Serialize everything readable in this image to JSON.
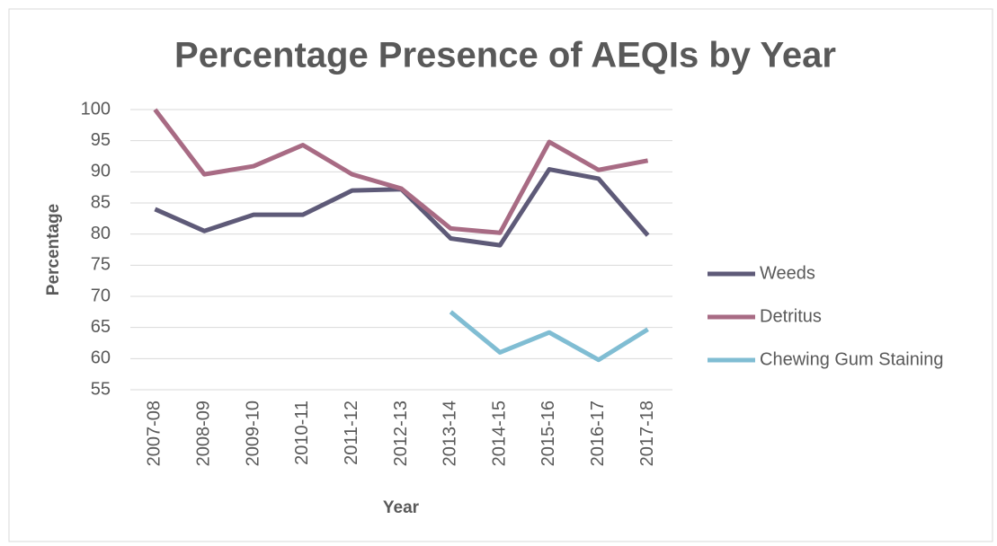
{
  "chart_data": {
    "type": "line",
    "title": "Percentage Presence of AEQIs by Year",
    "xlabel": "Year",
    "ylabel": "Percentage",
    "categories": [
      "2007-08",
      "2008-09",
      "2009-10",
      "2010-11",
      "2011-12",
      "2012-13",
      "2013-14",
      "2014-15",
      "2015-16",
      "2016-17",
      "2017-18"
    ],
    "series": [
      {
        "name": "Weeds",
        "color": "#5e5a78",
        "values": [
          84,
          80.5,
          83.1,
          83.1,
          87,
          87.2,
          79.3,
          78.2,
          90.4,
          88.9,
          79.8
        ]
      },
      {
        "name": "Detritus",
        "color": "#a86b84",
        "values": [
          100,
          89.6,
          90.9,
          94.3,
          89.6,
          87.3,
          80.9,
          80.2,
          94.8,
          90.3,
          91.8
        ]
      },
      {
        "name": "Chewing Gum Staining",
        "color": "#80bdd3",
        "values": [
          null,
          null,
          null,
          null,
          null,
          null,
          67.5,
          61,
          64.2,
          59.8,
          64.7
        ]
      }
    ],
    "ylim": [
      55,
      100
    ],
    "yticks": [
      55,
      60,
      65,
      70,
      75,
      80,
      85,
      90,
      95,
      100
    ],
    "grid": true,
    "legend": "right"
  }
}
